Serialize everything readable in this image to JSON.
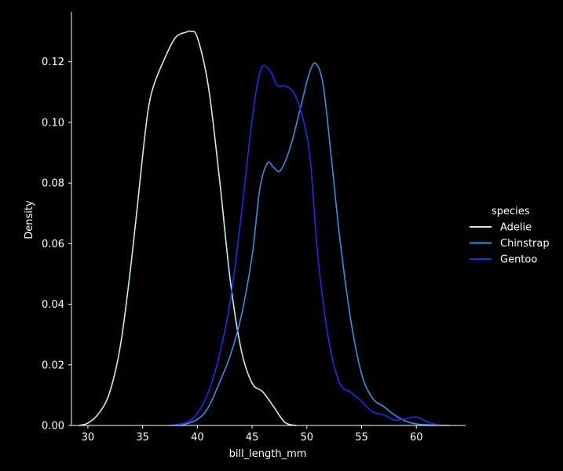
{
  "chart_data": {
    "type": "line",
    "xlabel": "bill_length_mm",
    "ylabel": "Density",
    "xlim": [
      28.5,
      64.5
    ],
    "ylim": [
      0,
      0.1365
    ],
    "xticks": [
      30,
      35,
      40,
      45,
      50,
      55,
      60
    ],
    "yticks": [
      0.0,
      0.02,
      0.04,
      0.06,
      0.08,
      0.1,
      0.12
    ],
    "grid": false,
    "legend": {
      "title": "species",
      "placement": "right"
    },
    "series": [
      {
        "name": "Adelie",
        "color": "#b8f3f3",
        "x": [
          29.2,
          30.0,
          31.0,
          32.0,
          33.0,
          34.0,
          35.0,
          35.5,
          36.0,
          37.0,
          38.0,
          39.0,
          39.4,
          40.0,
          41.0,
          42.0,
          43.0,
          44.0,
          45.0,
          46.0,
          47.0,
          48.0,
          49.0
        ],
        "y": [
          0.0,
          0.0008,
          0.004,
          0.011,
          0.027,
          0.055,
          0.089,
          0.104,
          0.112,
          0.121,
          0.128,
          0.1298,
          0.13,
          0.128,
          0.112,
          0.082,
          0.048,
          0.025,
          0.014,
          0.011,
          0.006,
          0.001,
          0.0
        ]
      },
      {
        "name": "Chinstrap",
        "color": "#3a8ee6",
        "x": [
          38.5,
          40.0,
          41.0,
          42.0,
          43.0,
          44.0,
          45.0,
          45.7,
          46.4,
          47.0,
          47.6,
          48.5,
          49.5,
          50.2,
          50.8,
          51.5,
          52.3,
          53.0,
          54.0,
          55.0,
          56.0,
          57.0,
          58.0,
          59.0,
          60.0,
          61.0,
          62.0,
          63.0
        ],
        "y": [
          0.0,
          0.002,
          0.006,
          0.014,
          0.023,
          0.036,
          0.056,
          0.078,
          0.0866,
          0.085,
          0.0842,
          0.092,
          0.106,
          0.116,
          0.1195,
          0.112,
          0.086,
          0.062,
          0.035,
          0.017,
          0.009,
          0.0063,
          0.0035,
          0.0015,
          0.0005,
          0.0002,
          0.0001,
          0.0
        ]
      },
      {
        "name": "Gentoo",
        "color": "#1a2ef0",
        "x": [
          37.5,
          39.0,
          40.0,
          41.0,
          42.0,
          43.0,
          44.0,
          45.0,
          45.8,
          46.6,
          47.3,
          48.0,
          48.8,
          49.6,
          50.3,
          51.0,
          52.0,
          53.0,
          54.0,
          55.0,
          56.0,
          57.0,
          58.0,
          59.0,
          60.0,
          61.0,
          62.0
        ],
        "y": [
          0.0,
          0.001,
          0.004,
          0.011,
          0.023,
          0.041,
          0.069,
          0.101,
          0.1175,
          0.1172,
          0.1122,
          0.112,
          0.1098,
          0.1018,
          0.088,
          0.056,
          0.028,
          0.014,
          0.011,
          0.008,
          0.0045,
          0.0035,
          0.0018,
          0.0022,
          0.0028,
          0.0012,
          0.0002
        ]
      }
    ]
  }
}
